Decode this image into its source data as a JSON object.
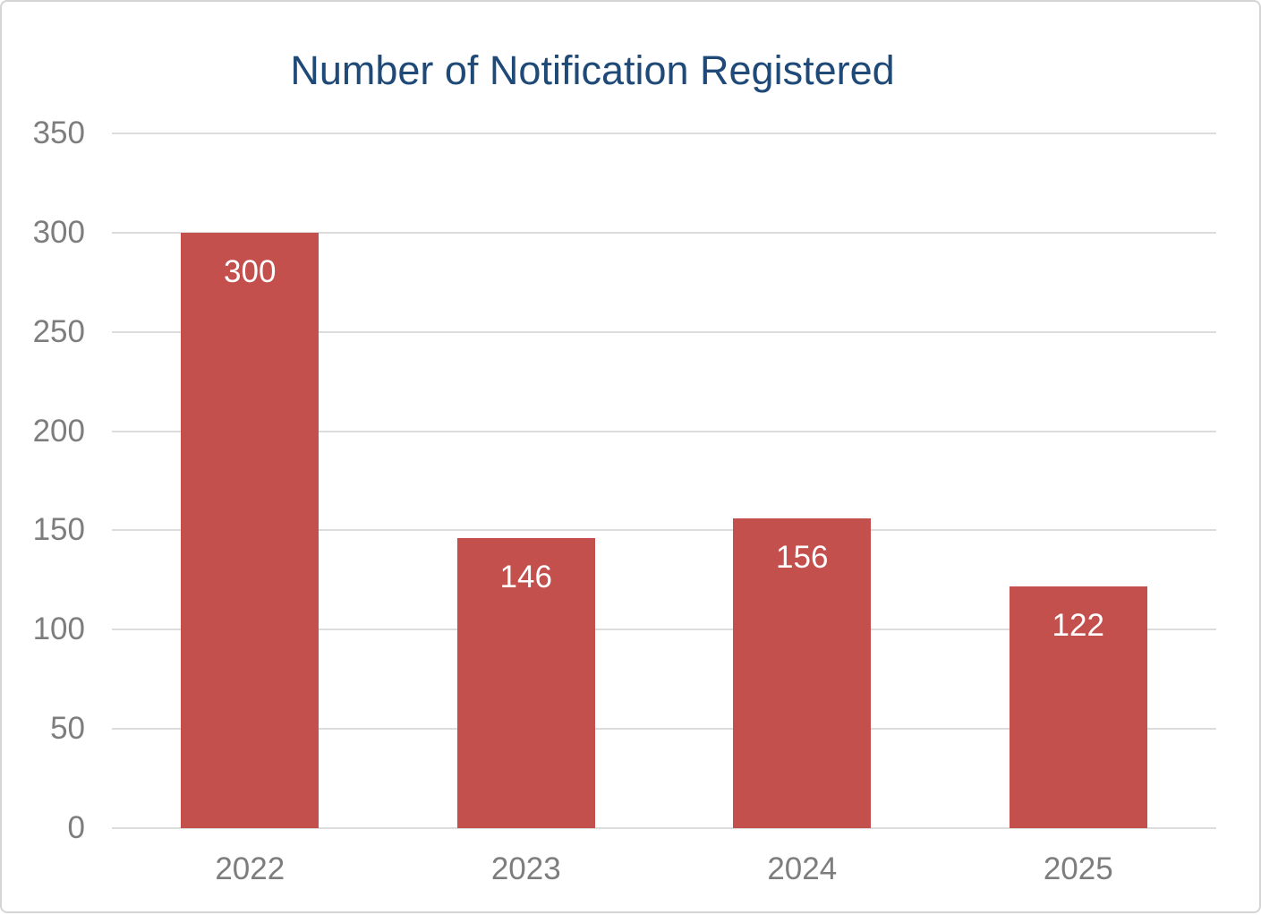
{
  "chart_data": {
    "type": "bar",
    "title": "Number of Notification Registered",
    "categories": [
      "2022",
      "2023",
      "2024",
      "2025"
    ],
    "values": [
      300,
      146,
      156,
      122
    ],
    "xlabel": "",
    "ylabel": "",
    "ylim": [
      0,
      350
    ],
    "ytick_step": 50,
    "grid": true,
    "legend": "none",
    "colors": {
      "bar": "#c4504d",
      "title": "#1f4a78",
      "axis_label": "#7d7d7d",
      "gridline": "#dcdcdc",
      "value_label": "#ffffff",
      "frame_border": "#d5d5d5",
      "background": "#ffffff"
    }
  }
}
